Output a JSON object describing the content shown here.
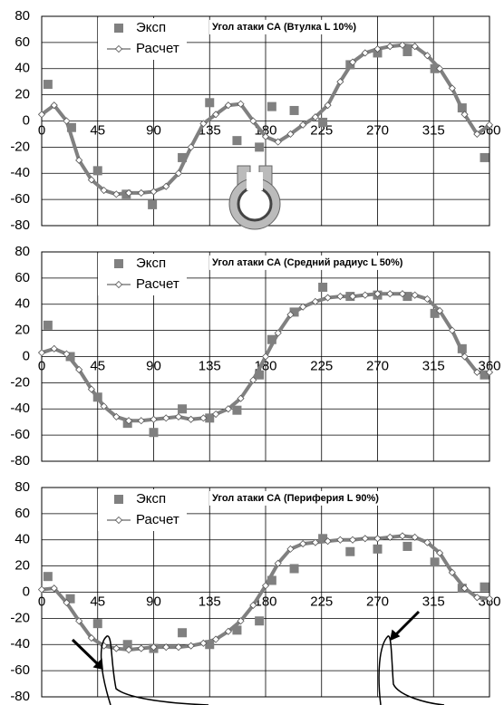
{
  "chart_data": [
    {
      "type": "line",
      "title": "Угол атаки СА (Втулка L 10%)",
      "xlim": [
        0,
        360
      ],
      "ylim": [
        -80,
        80
      ],
      "xticks": [
        0,
        45,
        90,
        135,
        180,
        225,
        270,
        315,
        360
      ],
      "yticks": [
        -80,
        -60,
        -40,
        -20,
        0,
        20,
        40,
        60,
        80
      ],
      "grid": true,
      "series": [
        {
          "name": "Эксп",
          "color": "#808080",
          "marker": "square",
          "x": [
            5,
            24,
            45,
            68,
            89,
            113,
            135,
            157,
            175,
            185,
            203,
            226,
            248,
            270,
            294,
            316,
            338,
            356
          ],
          "values": [
            28,
            -5,
            -38,
            -56,
            -64,
            -28,
            14,
            -15,
            -20,
            11,
            8,
            -1,
            43,
            52,
            53,
            40,
            10,
            -28
          ]
        },
        {
          "name": "Расчет",
          "color": "#808080",
          "marker": "diamond",
          "x": [
            0,
            10,
            20,
            30,
            40,
            50,
            60,
            70,
            80,
            90,
            100,
            110,
            120,
            130,
            140,
            150,
            160,
            170,
            180,
            190,
            200,
            210,
            220,
            230,
            240,
            250,
            260,
            270,
            280,
            290,
            300,
            310,
            320,
            330,
            340,
            350,
            360
          ],
          "values": [
            5,
            12,
            0,
            -30,
            -45,
            -53,
            -56,
            -55,
            -55,
            -54,
            -50,
            -40,
            -20,
            -2,
            5,
            12,
            13,
            0,
            -12,
            -16,
            -10,
            -3,
            3,
            12,
            30,
            45,
            52,
            55,
            57,
            58,
            57,
            50,
            40,
            25,
            5,
            -10,
            -3
          ]
        }
      ]
    },
    {
      "type": "line",
      "title": "Угол атаки СА (Средний радиус L 50%)",
      "xlim": [
        0,
        360
      ],
      "ylim": [
        -80,
        80
      ],
      "xticks": [
        0,
        45,
        90,
        135,
        180,
        225,
        270,
        315,
        360
      ],
      "yticks": [
        -80,
        -60,
        -40,
        -20,
        0,
        20,
        40,
        60,
        80
      ],
      "grid": true,
      "series": [
        {
          "name": "Эксп",
          "color": "#808080",
          "marker": "square",
          "x": [
            5,
            23,
            45,
            69,
            90,
            113,
            135,
            157,
            175,
            185,
            203,
            226,
            248,
            270,
            294,
            316,
            338,
            356
          ],
          "values": [
            24,
            0,
            -31,
            -51,
            -58,
            -40,
            -47,
            -41,
            -14,
            13,
            34,
            53,
            46,
            47,
            46,
            33,
            6,
            -14
          ]
        },
        {
          "name": "Расчет",
          "color": "#808080",
          "marker": "diamond",
          "x": [
            0,
            10,
            20,
            30,
            40,
            50,
            60,
            70,
            80,
            90,
            100,
            110,
            120,
            130,
            140,
            150,
            160,
            170,
            180,
            190,
            200,
            210,
            220,
            230,
            240,
            250,
            260,
            270,
            280,
            290,
            300,
            310,
            320,
            330,
            340,
            350,
            360
          ],
          "values": [
            3,
            6,
            2,
            -10,
            -25,
            -38,
            -46,
            -49,
            -49,
            -48,
            -47,
            -46,
            -48,
            -47,
            -44,
            -40,
            -32,
            -18,
            0,
            18,
            32,
            38,
            42,
            45,
            46,
            46,
            47,
            48,
            48,
            48,
            47,
            44,
            35,
            20,
            0,
            -12,
            -12
          ]
        }
      ]
    },
    {
      "type": "line",
      "title": "Угол атаки СА (Периферия L 90%)",
      "xlim": [
        0,
        360
      ],
      "ylim": [
        -80,
        80
      ],
      "xticks": [
        0,
        45,
        90,
        135,
        180,
        225,
        270,
        315,
        360
      ],
      "yticks": [
        -80,
        -60,
        -40,
        -20,
        0,
        20,
        40,
        60,
        80
      ],
      "grid": true,
      "series": [
        {
          "name": "Эксп",
          "color": "#808080",
          "marker": "square",
          "x": [
            5,
            23,
            45,
            69,
            90,
            113,
            135,
            157,
            175,
            185,
            203,
            226,
            248,
            270,
            294,
            316,
            338,
            356
          ],
          "values": [
            12,
            -5,
            -24,
            -40,
            -43,
            -31,
            -40,
            -29,
            -22,
            9,
            18,
            41,
            31,
            33,
            35,
            23,
            3,
            4
          ]
        },
        {
          "name": "Расчет",
          "color": "#808080",
          "marker": "diamond",
          "x": [
            0,
            10,
            20,
            30,
            40,
            50,
            60,
            70,
            80,
            90,
            100,
            110,
            120,
            130,
            140,
            150,
            160,
            170,
            180,
            190,
            200,
            210,
            220,
            230,
            240,
            250,
            260,
            270,
            280,
            290,
            300,
            310,
            320,
            330,
            340,
            350,
            360
          ],
          "values": [
            2,
            3,
            -8,
            -22,
            -35,
            -41,
            -43,
            -44,
            -43,
            -42,
            -42,
            -42,
            -41,
            -39,
            -36,
            -30,
            -22,
            -10,
            5,
            22,
            33,
            37,
            38,
            39,
            40,
            40,
            41,
            41,
            42,
            43,
            42,
            38,
            30,
            15,
            3,
            -4,
            -5
          ]
        }
      ]
    }
  ]
}
